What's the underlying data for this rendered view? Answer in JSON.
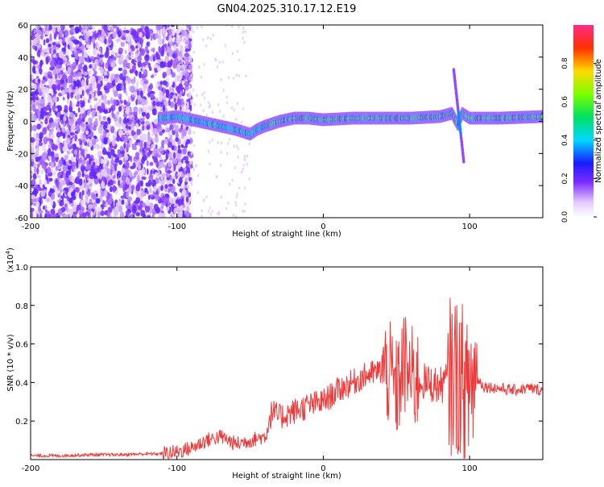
{
  "title": "GN04.2025.310.17.12.E19",
  "colors": {
    "snr_line": "#f03a3a",
    "frame": "#000000"
  },
  "chart_data": [
    {
      "type": "heatmap",
      "title": "GN04.2025.310.17.12.E19",
      "xlabel": "Height of straight line (km)",
      "ylabel": "Frequency (Hz)",
      "xlim": [
        -200,
        150
      ],
      "ylim": [
        -60,
        60
      ],
      "x_ticks": [
        -200,
        -100,
        0,
        100
      ],
      "x_tick_labels": [
        "-200",
        "-100",
        "0",
        "100"
      ],
      "y_ticks": [
        -60,
        -40,
        -20,
        0,
        20,
        40,
        60
      ],
      "y_tick_labels": [
        "-60",
        "-40",
        "-20",
        "0",
        "20",
        "40",
        "60"
      ],
      "colorbar": {
        "label": "Normalized spectral amplitude",
        "range": [
          0,
          1
        ],
        "ticks": [
          0.0,
          0.2,
          0.4,
          0.6,
          0.8
        ],
        "tick_labels": [
          "0.0",
          "0.2",
          "0.4",
          "0.6",
          "0.8"
        ]
      },
      "ridge": {
        "x": [
          -110,
          -100,
          -90,
          -80,
          -70,
          -60,
          -50,
          -45,
          -40,
          -30,
          -20,
          -10,
          0,
          20,
          40,
          60,
          80,
          88,
          92,
          95,
          100,
          120,
          150
        ],
        "y": [
          2,
          3,
          1,
          -1,
          -3,
          -5,
          -8,
          -5,
          -3,
          0,
          2,
          2,
          1,
          2,
          2,
          2,
          3,
          5,
          -2,
          5,
          2,
          2,
          3
        ]
      }
    },
    {
      "type": "line",
      "xlabel": "Height of straight line (km)",
      "ylabel": "SNR (10 * v/v)",
      "y_multiplier": "(x10",
      "y_multiplier_exp": "4",
      "y_multiplier_close": ")",
      "xlim": [
        -200,
        150
      ],
      "ylim": [
        0,
        1.0
      ],
      "x_ticks": [
        -200,
        -100,
        0,
        100
      ],
      "x_tick_labels": [
        "-200",
        "-100",
        "0",
        "100"
      ],
      "y_ticks": [
        0.2,
        0.4,
        0.6,
        0.8,
        1.0
      ],
      "y_tick_labels": [
        "0.2",
        "0.4",
        "0.6",
        "0.8",
        "1.0"
      ],
      "series": [
        {
          "name": "SNR",
          "x": [
            -200,
            -180,
            -160,
            -140,
            -120,
            -110,
            -100,
            -90,
            -80,
            -70,
            -60,
            -50,
            -40,
            -35,
            -30,
            -20,
            -10,
            0,
            10,
            20,
            30,
            40,
            45,
            50,
            55,
            60,
            70,
            80,
            85,
            90,
            95,
            98,
            100,
            105,
            110,
            120,
            130,
            140,
            150
          ],
          "y": [
            0.02,
            0.02,
            0.025,
            0.025,
            0.03,
            0.03,
            0.04,
            0.06,
            0.1,
            0.12,
            0.08,
            0.1,
            0.12,
            0.25,
            0.22,
            0.25,
            0.28,
            0.3,
            0.36,
            0.4,
            0.44,
            0.46,
            0.45,
            0.35,
            0.5,
            0.42,
            0.4,
            0.38,
            0.42,
            0.45,
            0.4,
            0.3,
            0.4,
            0.42,
            0.38,
            0.37,
            0.36,
            0.37,
            0.36
          ]
        }
      ]
    }
  ]
}
